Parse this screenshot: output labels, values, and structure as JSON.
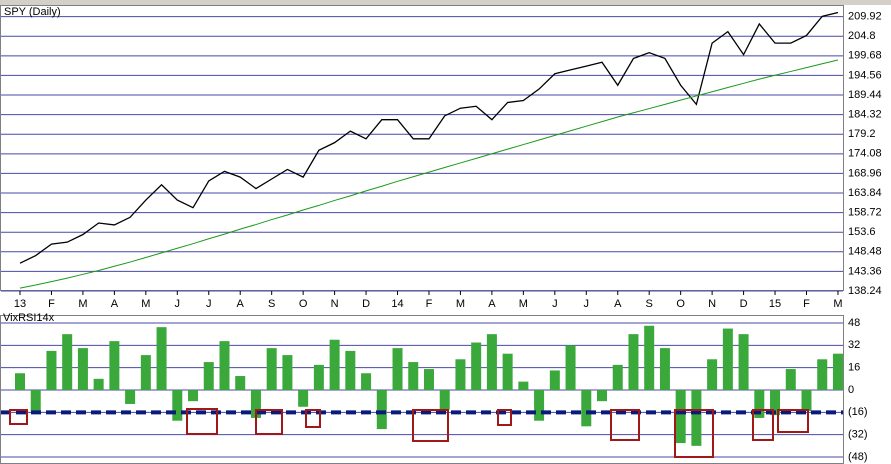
{
  "chart_data": [
    {
      "type": "line",
      "title": "SPY (Daily)",
      "categories": [
        "13",
        null,
        "F",
        null,
        "M",
        null,
        "A",
        null,
        "M",
        null,
        "J",
        null,
        "J",
        null,
        "A",
        null,
        "S",
        null,
        "O",
        null,
        "N",
        null,
        "D",
        null,
        "14",
        null,
        "F",
        null,
        "M",
        null,
        "A",
        null,
        "M",
        null,
        "J",
        null,
        "J",
        null,
        "A",
        null,
        "S",
        null,
        "O",
        null,
        "N",
        null,
        "D",
        null,
        "15",
        null,
        "F",
        null,
        "M"
      ],
      "series": [
        {
          "color": "#000000",
          "values": [
            145.5,
            147.5,
            150.5,
            151,
            153,
            156,
            155.5,
            157.5,
            162,
            166,
            162,
            160,
            167,
            169.5,
            168,
            165,
            167.5,
            170,
            168,
            175,
            177,
            180,
            178,
            183,
            183,
            178,
            178,
            184,
            186,
            186.5,
            183,
            187.5,
            188,
            191,
            195,
            196,
            197,
            198,
            192,
            199,
            200.5,
            199,
            192,
            187,
            203,
            206,
            200,
            208,
            203,
            203,
            205,
            210,
            211
          ]
        },
        {
          "color": "#1a9a1a",
          "values": [
            139,
            139.8,
            140.7,
            141.6,
            142.6,
            143.6,
            144.7,
            145.8,
            147,
            148.2,
            149.4,
            150.6,
            151.9,
            153.1,
            154.4,
            155.6,
            156.9,
            158.1,
            159.4,
            160.6,
            161.9,
            163.1,
            164.4,
            165.6,
            166.9,
            168.1,
            169.3,
            170.5,
            171.7,
            172.9,
            174.1,
            175.3,
            176.5,
            177.7,
            178.9,
            180.1,
            181.3,
            182.5,
            183.7,
            184.8,
            185.9,
            187,
            188.1,
            189.2,
            190.3,
            191.4,
            192.5,
            193.6,
            194.6,
            195.6,
            196.6,
            197.6,
            198.6
          ]
        }
      ],
      "ylim": [
        138.24,
        212.7
      ],
      "yticks": [
        138.24,
        143.36,
        148.48,
        153.6,
        158.72,
        163.84,
        168.96,
        174.08,
        179.2,
        184.32,
        189.44,
        194.56,
        199.68,
        204.8,
        209.92
      ],
      "grid": true
    },
    {
      "type": "bar",
      "title": "VixRSI14x",
      "color": "#3aa83a",
      "values": [
        12,
        -15,
        28,
        40,
        30,
        8,
        35,
        -10,
        25,
        45,
        -22,
        -8,
        20,
        35,
        10,
        -20,
        30,
        25,
        -12,
        18,
        36,
        28,
        12,
        -28,
        30,
        20,
        15,
        -14,
        22,
        34,
        40,
        26,
        6,
        -22,
        14,
        32,
        -26,
        -8,
        18,
        40,
        46,
        30,
        -38,
        -40,
        22,
        44,
        40,
        -20,
        -18,
        15,
        -15,
        22,
        26
      ],
      "ylim": [
        -53,
        53
      ],
      "yticks": [
        48,
        32,
        16,
        0,
        {
          "value": -16,
          "label": "(16)"
        },
        {
          "value": -32,
          "label": "(32)"
        },
        {
          "value": -48,
          "label": "(48)"
        }
      ],
      "reference_line": -16,
      "reference_color": "#0a1a7a",
      "grid": true
    }
  ]
}
